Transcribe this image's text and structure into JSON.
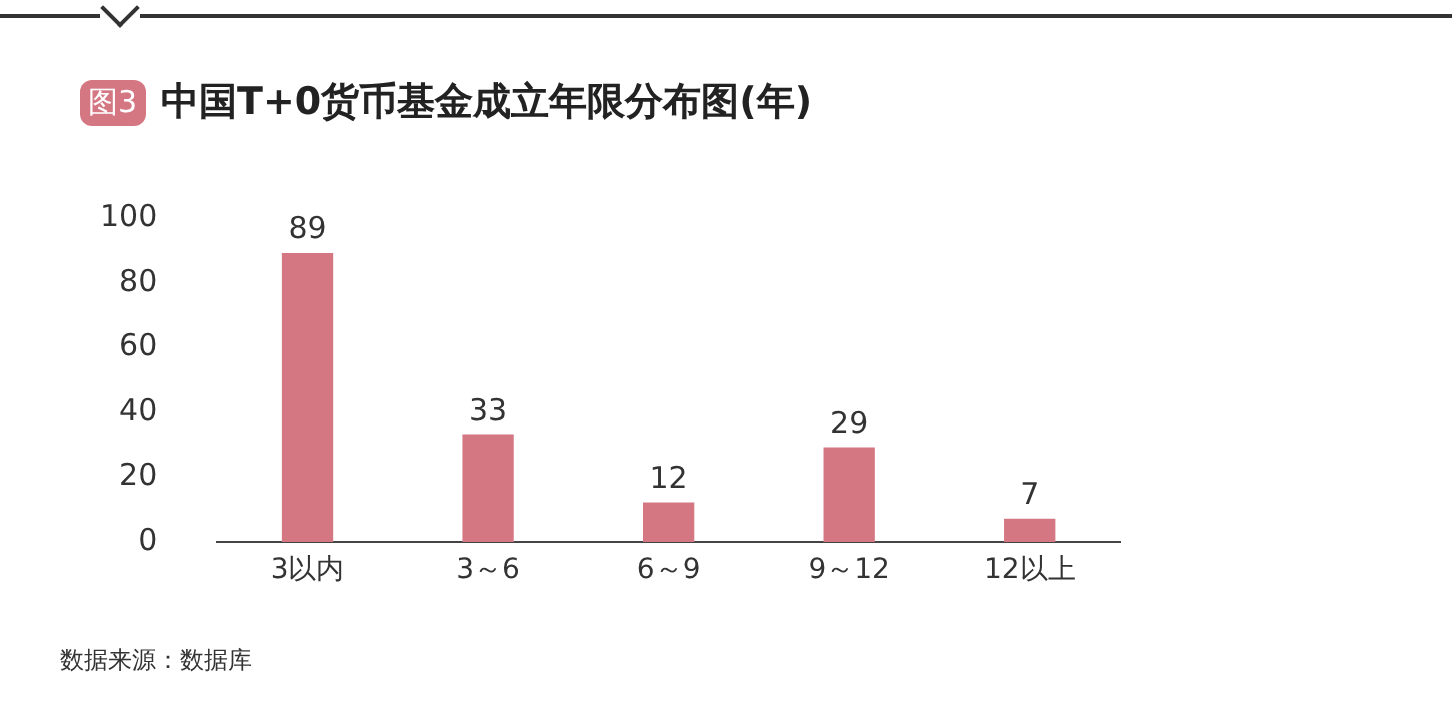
{
  "chart_data": {
    "type": "bar",
    "title": "中国T+0货币基金成立年限分布图(年)",
    "annotations": [
      "图3",
      "数据来源：数据库"
    ],
    "categories": [
      "3以内",
      "3～6",
      "6～9",
      "9～12",
      "12以上"
    ],
    "values": [
      89,
      33,
      12,
      29,
      7
    ],
    "color": "#d47783",
    "ylim": [
      0,
      100
    ],
    "yticks": [
      0,
      20,
      40,
      60,
      80,
      100
    ],
    "grid": false,
    "legend": false,
    "data_labels": true
  }
}
